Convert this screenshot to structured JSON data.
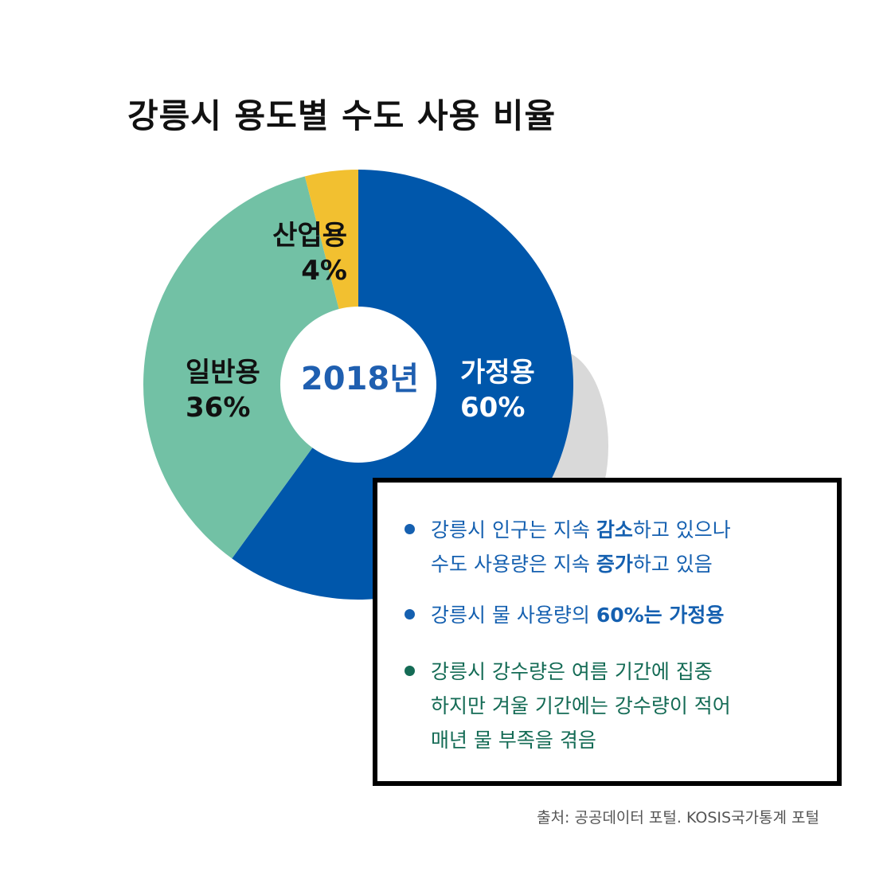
{
  "chart_data": {
    "type": "pie",
    "title": "강릉시 용도별 수도 사용 비율",
    "center_label": "2018년",
    "slices": [
      {
        "name": "가정용",
        "value": 60,
        "label": "60%",
        "color": "#0057ab"
      },
      {
        "name": "일반용",
        "value": 36,
        "label": "36%",
        "color": "#72c1a5"
      },
      {
        "name": "산업용",
        "value": 4,
        "label": "4%",
        "color": "#f2c030"
      }
    ]
  },
  "colors": {
    "shadow": "#d9d9d9",
    "blue_text": "#1560b0",
    "green_text": "#146b55"
  },
  "info_box": {
    "bullets": [
      {
        "lines": [
          [
            {
              "t": "강릉시 인구는 지속 "
            },
            {
              "t": "감소",
              "b": true
            },
            {
              "t": "하고 있으나"
            }
          ],
          [
            {
              "t": "수도 사용량은 지속 "
            },
            {
              "t": "증가",
              "b": true
            },
            {
              "t": "하고 있음"
            }
          ]
        ]
      },
      {
        "lines": [
          [
            {
              "t": "강릉시 물 사용량의 "
            },
            {
              "t": "60%는 가정용",
              "b": true
            }
          ]
        ]
      },
      {
        "lines": [
          [
            {
              "t": "강릉시 강수량은 여름 기간에 집중"
            }
          ],
          [
            {
              "t": "하지만 겨울 기간에는 강수량이 적어"
            }
          ],
          [
            {
              "t": "매년 물 부족을 겪음"
            }
          ]
        ]
      }
    ]
  },
  "source": "출처: 공공데이터 포털. KOSIS국가통계 포털"
}
